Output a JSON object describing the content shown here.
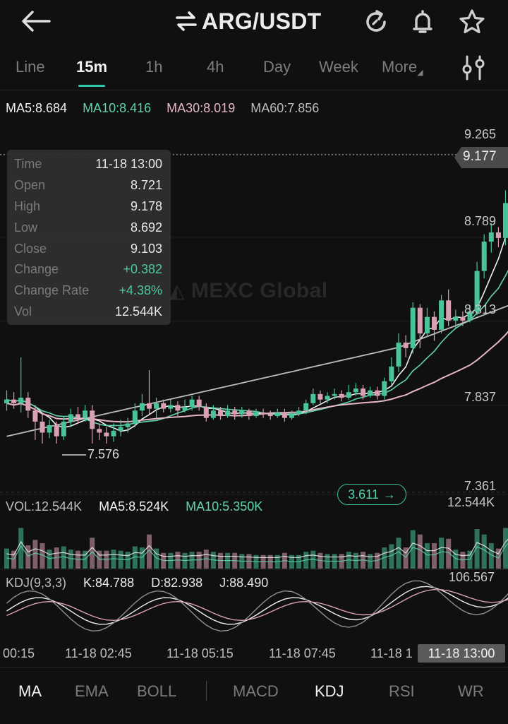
{
  "header": {
    "pair_title": "ARG/USDT",
    "icons": [
      "back-arrow-icon",
      "swap-arrows-icon",
      "refresh-icon",
      "bell-icon",
      "star-icon"
    ]
  },
  "tabs": {
    "items": [
      "Line",
      "15m",
      "1h",
      "4h",
      "Day",
      "Week",
      "More"
    ],
    "active": "15m",
    "settings_icon": "sliders-icon"
  },
  "ma": {
    "ma5": "MA5:8.684",
    "ma10": "MA10:8.416",
    "ma30": "MA30:8.019",
    "ma60": "MA60:7.856"
  },
  "tooltip": {
    "time_label": "Time",
    "time_value": "11-18 13:00",
    "open_label": "Open",
    "open_value": "8.721",
    "high_label": "High",
    "high_value": "9.178",
    "low_label": "Low",
    "low_value": "8.692",
    "close_label": "Close",
    "close_value": "9.103",
    "change_label": "Change",
    "change_value": "+0.382",
    "rate_label": "Change Rate",
    "rate_value": "+4.38%",
    "vol_label": "Vol",
    "vol_value": "12.544K"
  },
  "price_axis": {
    "p1": "9.265",
    "current": "9.177",
    "p2": "8.789",
    "p3": "8.313",
    "p4": "7.837",
    "p5": "7.361",
    "min_marker": "7.576"
  },
  "watermark": "MEXC Global",
  "jump": {
    "value": "3.611"
  },
  "volume": {
    "vol": "VOL:12.544K",
    "ma5": "MA5:8.524K",
    "ma10": "MA10:5.350K",
    "max": "12.544K"
  },
  "kdj": {
    "title": "KDJ(9,3,3)",
    "k": "K:84.788",
    "d": "D:82.938",
    "j": "J:88.490",
    "max": "106.567"
  },
  "time_axis": {
    "t1": "00:15",
    "t2": "11-18 02:45",
    "t3": "11-18 05:15",
    "t4": "11-18 07:45",
    "t5": "11-18 1",
    "highlight": "11-18 13:00"
  },
  "indicators": [
    "MA",
    "EMA",
    "BOLL",
    "MACD",
    "KDJ",
    "RSI",
    "WR"
  ],
  "colors": {
    "up": "#49c39a",
    "down": "#d9a0b2",
    "ma5": "#f0f0f0",
    "ma10": "#5fd3b0",
    "ma30": "#e6b7c3",
    "ma60": "#bdbdbd",
    "accent": "#2fc7a6"
  },
  "chart_data": {
    "type": "candlestick",
    "series": "ARG/USDT 15m",
    "y_axis_ticks": [
      "9.265",
      "8.789",
      "8.313",
      "7.837",
      "7.361"
    ],
    "last_price": "9.177",
    "selected_candle": {
      "time": "11-18 13:00",
      "open": 8.721,
      "high": 9.178,
      "low": 8.692,
      "close": 9.103,
      "vol": "12.544K"
    },
    "candles": [
      [
        7.8,
        7.82,
        7.87,
        7.76
      ],
      [
        7.82,
        7.8,
        7.86,
        7.77
      ],
      [
        7.8,
        7.83,
        8.05,
        7.75
      ],
      [
        7.83,
        7.76,
        7.86,
        7.72
      ],
      [
        7.76,
        7.7,
        7.79,
        7.6
      ],
      [
        7.7,
        7.64,
        7.74,
        7.58
      ],
      [
        7.64,
        7.68,
        7.71,
        7.61
      ],
      [
        7.68,
        7.62,
        7.7,
        7.58
      ],
      [
        7.62,
        7.7,
        7.73,
        7.6
      ],
      [
        7.7,
        7.74,
        7.77,
        7.67
      ],
      [
        7.74,
        7.72,
        7.78,
        7.69
      ],
      [
        7.72,
        7.76,
        7.79,
        7.7
      ],
      [
        7.76,
        7.66,
        7.79,
        7.58
      ],
      [
        7.66,
        7.64,
        7.69,
        7.6
      ],
      [
        7.64,
        7.62,
        7.67,
        7.58
      ],
      [
        7.62,
        7.65,
        7.69,
        7.59
      ],
      [
        7.65,
        7.67,
        7.71,
        7.62
      ],
      [
        7.67,
        7.69,
        7.72,
        7.64
      ],
      [
        7.69,
        7.76,
        7.8,
        7.67
      ],
      [
        7.76,
        7.8,
        7.85,
        7.73
      ],
      [
        7.8,
        7.77,
        7.98,
        7.74
      ],
      [
        7.77,
        7.8,
        7.83,
        7.72
      ],
      [
        7.8,
        7.77,
        7.82,
        7.75
      ],
      [
        7.77,
        7.79,
        7.82,
        7.75
      ],
      [
        7.79,
        7.76,
        7.81,
        7.73
      ],
      [
        7.76,
        7.78,
        7.82,
        7.75
      ],
      [
        7.78,
        7.82,
        7.84,
        7.76
      ],
      [
        7.82,
        7.78,
        7.84,
        7.76
      ],
      [
        7.78,
        7.72,
        7.8,
        7.7
      ],
      [
        7.72,
        7.76,
        7.79,
        7.71
      ],
      [
        7.76,
        7.73,
        7.78,
        7.71
      ],
      [
        7.73,
        7.76,
        7.79,
        7.72
      ],
      [
        7.76,
        7.74,
        7.78,
        7.71
      ],
      [
        7.74,
        7.76,
        7.78,
        7.72
      ],
      [
        7.76,
        7.73,
        7.77,
        7.71
      ],
      [
        7.73,
        7.75,
        7.77,
        7.72
      ],
      [
        7.75,
        7.74,
        7.77,
        7.72
      ],
      [
        7.74,
        7.73,
        7.76,
        7.71
      ],
      [
        7.73,
        7.75,
        7.77,
        7.72
      ],
      [
        7.75,
        7.72,
        7.77,
        7.7
      ],
      [
        7.72,
        7.74,
        7.76,
        7.71
      ],
      [
        7.74,
        7.76,
        7.78,
        7.73
      ],
      [
        7.76,
        7.8,
        7.82,
        7.74
      ],
      [
        7.8,
        7.85,
        7.88,
        7.79
      ],
      [
        7.85,
        7.82,
        7.87,
        7.8
      ],
      [
        7.82,
        7.84,
        7.86,
        7.8
      ],
      [
        7.84,
        7.85,
        7.88,
        7.82
      ],
      [
        7.85,
        7.83,
        7.87,
        7.81
      ],
      [
        7.83,
        7.86,
        7.9,
        7.82
      ],
      [
        7.86,
        7.88,
        7.91,
        7.84
      ],
      [
        7.88,
        7.84,
        7.9,
        7.82
      ],
      [
        7.84,
        7.87,
        7.89,
        7.83
      ],
      [
        7.87,
        7.84,
        7.89,
        7.82
      ],
      [
        7.84,
        7.92,
        7.94,
        7.82
      ],
      [
        7.92,
        8.0,
        8.05,
        7.9
      ],
      [
        8.0,
        8.13,
        8.18,
        7.97
      ],
      [
        8.13,
        8.1,
        8.17,
        8.05
      ],
      [
        8.1,
        8.32,
        8.35,
        8.07
      ],
      [
        8.32,
        8.18,
        8.34,
        8.1
      ],
      [
        8.18,
        8.27,
        8.32,
        8.16
      ],
      [
        8.27,
        8.2,
        8.3,
        8.14
      ],
      [
        8.2,
        8.36,
        8.39,
        8.18
      ],
      [
        8.36,
        8.25,
        8.42,
        8.22
      ],
      [
        8.25,
        8.27,
        8.31,
        8.21
      ],
      [
        8.27,
        8.25,
        8.3,
        8.22
      ],
      [
        8.25,
        8.3,
        8.33,
        8.24
      ],
      [
        8.3,
        8.52,
        8.57,
        8.28
      ],
      [
        8.52,
        8.68,
        8.72,
        8.48
      ],
      [
        8.68,
        8.73,
        8.78,
        8.62
      ],
      [
        8.73,
        8.7,
        8.76,
        8.65
      ],
      [
        8.7,
        8.89,
        8.96,
        8.66
      ],
      [
        8.721,
        9.103,
        9.178,
        8.692
      ]
    ]
  }
}
